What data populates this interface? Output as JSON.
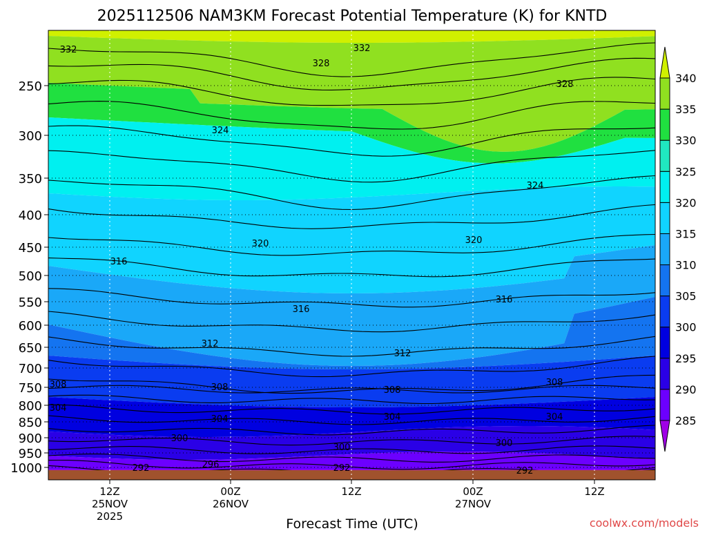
{
  "chart_data": {
    "type": "contour",
    "title": "2025112506 NAM3KM Forecast Potential Temperature (K) for KNTD",
    "xlabel": "Forecast Time (UTC)",
    "credit": "coolwx.com/models",
    "y_ticks": [
      "250",
      "300",
      "350",
      "400",
      "450",
      "500",
      "550",
      "600",
      "650",
      "700",
      "750",
      "800",
      "850",
      "900",
      "950",
      "1000"
    ],
    "x_ticks": [
      {
        "line1": "12Z",
        "line2": "25NOV",
        "line3": "2025"
      },
      {
        "line1": "00Z",
        "line2": "26NOV",
        "line3": ""
      },
      {
        "line1": "12Z",
        "line2": "",
        "line3": ""
      },
      {
        "line1": "00Z",
        "line2": "27NOV",
        "line3": ""
      },
      {
        "line1": "12Z",
        "line2": "",
        "line3": ""
      }
    ],
    "colorbar": {
      "levels": [
        285,
        290,
        295,
        300,
        305,
        310,
        315,
        320,
        325,
        330,
        335,
        340
      ],
      "labels": [
        "285",
        "290",
        "295",
        "300",
        "305",
        "310",
        "315",
        "320",
        "325",
        "330",
        "335",
        "340"
      ],
      "colors": [
        "#a000e6",
        "#6c00ff",
        "#2a00e6",
        "#0000e0",
        "#0a3cf0",
        "#1474f0",
        "#1aa8f8",
        "#10d4ff",
        "#00f0f0",
        "#20e8c0",
        "#20e040",
        "#90e020",
        "#d0f000"
      ]
    },
    "contour_labels": [
      {
        "text": "332"
      },
      {
        "text": "332"
      },
      {
        "text": "328"
      },
      {
        "text": "328"
      },
      {
        "text": "324"
      },
      {
        "text": "324"
      },
      {
        "text": "320"
      },
      {
        "text": "320"
      },
      {
        "text": "316"
      },
      {
        "text": "316"
      },
      {
        "text": "316"
      },
      {
        "text": "312"
      },
      {
        "text": "312"
      },
      {
        "text": "308"
      },
      {
        "text": "308"
      },
      {
        "text": "308"
      },
      {
        "text": "308"
      },
      {
        "text": "304"
      },
      {
        "text": "304"
      },
      {
        "text": "304"
      },
      {
        "text": "304"
      },
      {
        "text": "300"
      },
      {
        "text": "300"
      },
      {
        "text": "300"
      },
      {
        "text": "296"
      },
      {
        "text": "292"
      },
      {
        "text": "292"
      },
      {
        "text": "292"
      }
    ],
    "ground_color": "#a0522d"
  }
}
